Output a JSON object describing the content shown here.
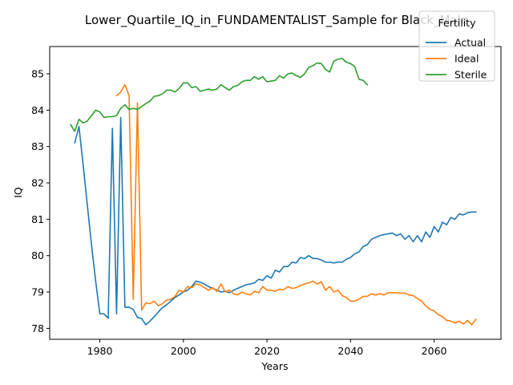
{
  "chart_data": {
    "type": "line",
    "title": "Lower_Quartile_IQ_in_FUNDAMENTALIST_Sample for Black_Male",
    "xlabel": "Years",
    "ylabel": "IQ",
    "xlim": [
      1968,
      2076
    ],
    "ylim": [
      77.7,
      85.75
    ],
    "xticks": [
      1980,
      2000,
      2020,
      2040,
      2060
    ],
    "yticks": [
      78,
      79,
      80,
      81,
      82,
      83,
      84,
      85
    ],
    "grid": false,
    "legend": {
      "title": "Fertility",
      "placement": "top-right"
    },
    "series": [
      {
        "name": "Actual",
        "color": "#1f77b4",
        "x": [
          1974,
          1975,
          1976,
          1977,
          1978,
          1979,
          1980,
          1981,
          1982,
          1983,
          1984,
          1985,
          1986,
          1987,
          1988,
          1989,
          1990,
          1991,
          1992,
          1993,
          1994,
          1995,
          1996,
          1997,
          1998,
          1999,
          2000,
          2001,
          2002,
          2003,
          2004,
          2005,
          2006,
          2007,
          2008,
          2009,
          2010,
          2011,
          2012,
          2013,
          2014,
          2015,
          2016,
          2017,
          2018,
          2019,
          2020,
          2021,
          2022,
          2023,
          2024,
          2025,
          2026,
          2027,
          2028,
          2029,
          2030,
          2031,
          2032,
          2033,
          2034,
          2035,
          2036,
          2037,
          2038,
          2039,
          2040,
          2041,
          2042,
          2043,
          2044,
          2045,
          2046,
          2047,
          2048,
          2049,
          2050,
          2051,
          2052,
          2053,
          2054,
          2055,
          2056,
          2057,
          2058,
          2059,
          2060,
          2061,
          2062,
          2063,
          2064,
          2065,
          2066,
          2067,
          2068,
          2069,
          2070
        ],
        "y": [
          83.1,
          83.55,
          82.5,
          81.4,
          80.3,
          79.3,
          78.4,
          78.4,
          78.28,
          83.5,
          78.4,
          83.8,
          78.58,
          78.58,
          78.52,
          78.3,
          78.27,
          78.1,
          78.2,
          78.32,
          78.45,
          78.57,
          78.65,
          78.75,
          78.85,
          78.92,
          79.0,
          79.05,
          79.15,
          79.3,
          79.27,
          79.22,
          79.15,
          79.1,
          79.05,
          79.0,
          79.02,
          78.98,
          79.05,
          79.1,
          79.15,
          79.2,
          79.22,
          79.25,
          79.35,
          79.32,
          79.45,
          79.38,
          79.6,
          79.55,
          79.7,
          79.7,
          79.82,
          79.8,
          79.95,
          79.92,
          80.0,
          79.92,
          79.92,
          79.88,
          79.82,
          79.82,
          79.8,
          79.82,
          79.82,
          79.9,
          79.95,
          80.05,
          80.1,
          80.25,
          80.3,
          80.45,
          80.5,
          80.55,
          80.58,
          80.6,
          80.62,
          80.55,
          80.6,
          80.45,
          80.55,
          80.38,
          80.55,
          80.38,
          80.65,
          80.5,
          80.8,
          80.65,
          80.92,
          80.85,
          81.05,
          81.0,
          81.15,
          81.12,
          81.18,
          81.2,
          81.2
        ]
      },
      {
        "name": "Ideal",
        "color": "#ff7f0e",
        "x": [
          1984,
          1985,
          1986,
          1987,
          1988,
          1989,
          1990,
          1991,
          1992,
          1993,
          1994,
          1995,
          1996,
          1997,
          1998,
          1999,
          2000,
          2001,
          2002,
          2003,
          2004,
          2005,
          2006,
          2007,
          2008,
          2009,
          2010,
          2011,
          2012,
          2013,
          2014,
          2015,
          2016,
          2017,
          2018,
          2019,
          2020,
          2021,
          2022,
          2023,
          2024,
          2025,
          2026,
          2027,
          2028,
          2029,
          2030,
          2031,
          2032,
          2033,
          2034,
          2035,
          2036,
          2037,
          2038,
          2039,
          2040,
          2041,
          2042,
          2043,
          2044,
          2045,
          2046,
          2047,
          2048,
          2049,
          2050,
          2051,
          2052,
          2053,
          2054,
          2055,
          2056,
          2057,
          2058,
          2059,
          2060,
          2061,
          2062,
          2063,
          2064,
          2065,
          2066,
          2067,
          2068,
          2069,
          2070
        ],
        "y": [
          84.4,
          84.5,
          84.7,
          84.4,
          78.8,
          84.2,
          78.5,
          78.7,
          78.68,
          78.75,
          78.62,
          78.68,
          78.78,
          78.8,
          78.88,
          79.05,
          79.0,
          79.15,
          79.12,
          79.22,
          79.2,
          79.12,
          79.05,
          79.12,
          79.02,
          79.22,
          79.0,
          79.05,
          78.95,
          78.92,
          79.0,
          78.95,
          78.92,
          79.02,
          78.98,
          79.15,
          79.05,
          79.05,
          79.02,
          79.08,
          79.06,
          79.15,
          79.1,
          79.12,
          79.18,
          79.22,
          79.25,
          79.3,
          79.22,
          79.28,
          79.05,
          79.15,
          79.0,
          79.05,
          78.9,
          78.85,
          78.75,
          78.75,
          78.8,
          78.88,
          78.88,
          78.95,
          78.92,
          78.95,
          78.92,
          78.98,
          78.98,
          78.98,
          78.97,
          78.97,
          78.92,
          78.9,
          78.82,
          78.75,
          78.62,
          78.52,
          78.48,
          78.38,
          78.32,
          78.22,
          78.2,
          78.15,
          78.2,
          78.12,
          78.22,
          78.1,
          78.25
        ]
      },
      {
        "name": "Sterile",
        "color": "#2ca02c",
        "x": [
          1973,
          1974,
          1975,
          1976,
          1977,
          1978,
          1979,
          1980,
          1981,
          1982,
          1983,
          1984,
          1985,
          1986,
          1987,
          1988,
          1989,
          1990,
          1991,
          1992,
          1993,
          1994,
          1995,
          1996,
          1997,
          1998,
          1999,
          2000,
          2001,
          2002,
          2003,
          2004,
          2005,
          2006,
          2007,
          2008,
          2009,
          2010,
          2011,
          2012,
          2013,
          2014,
          2015,
          2016,
          2017,
          2018,
          2019,
          2020,
          2021,
          2022,
          2023,
          2024,
          2025,
          2026,
          2027,
          2028,
          2029,
          2030,
          2031,
          2032,
          2033,
          2034,
          2035,
          2036,
          2037,
          2038,
          2039,
          2040,
          2041,
          2042,
          2043,
          2044
        ],
        "y": [
          83.6,
          83.42,
          83.75,
          83.65,
          83.7,
          83.85,
          84.0,
          83.95,
          83.8,
          83.82,
          83.82,
          83.85,
          84.05,
          84.15,
          84.02,
          84.05,
          84.02,
          84.1,
          84.18,
          84.25,
          84.38,
          84.4,
          84.45,
          84.55,
          84.55,
          84.5,
          84.6,
          84.75,
          84.75,
          84.62,
          84.65,
          84.52,
          84.55,
          84.58,
          84.55,
          84.58,
          84.7,
          84.62,
          84.55,
          84.65,
          84.68,
          84.78,
          84.82,
          84.82,
          84.92,
          84.85,
          84.92,
          84.78,
          84.8,
          84.82,
          84.95,
          84.88,
          85.0,
          85.02,
          84.95,
          84.9,
          85.0,
          85.18,
          85.22,
          85.3,
          85.28,
          85.12,
          85.05,
          85.35,
          85.4,
          85.42,
          85.32,
          85.28,
          85.2,
          84.85,
          84.82,
          84.7
        ]
      }
    ]
  }
}
